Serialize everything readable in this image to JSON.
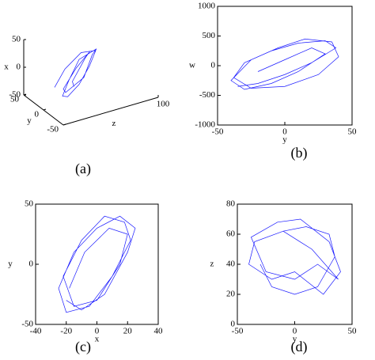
{
  "chart_data": [
    {
      "type": "line3d",
      "label": "(a)",
      "xlabel": "x",
      "ylabel": "y",
      "zlabel": "z",
      "color": "#1a1aff",
      "xlim": [
        -50,
        50
      ],
      "ylim": [
        -50,
        50
      ],
      "zlim": [
        0,
        100
      ],
      "xticks": [
        -50,
        0,
        50
      ],
      "yticks": [
        -50,
        0,
        50
      ],
      "zticks": [
        100
      ],
      "x": [
        -30,
        -10,
        15,
        30,
        20,
        0,
        -20,
        -35,
        -25,
        0,
        25,
        35,
        10,
        -15,
        -30,
        -10,
        20,
        30,
        5,
        -20
      ],
      "y": [
        20,
        30,
        25,
        0,
        -20,
        -30,
        -25,
        0,
        20,
        30,
        10,
        -15,
        -30,
        -20,
        10,
        25,
        15,
        -10,
        -25,
        -5
      ],
      "z": [
        20,
        35,
        50,
        55,
        40,
        25,
        15,
        20,
        35,
        50,
        60,
        45,
        30,
        15,
        25,
        45,
        55,
        40,
        20,
        30
      ]
    },
    {
      "type": "line",
      "label": "(b)",
      "xlabel": "y",
      "ylabel": "w",
      "color": "#1a1aff",
      "xlim": [
        -50,
        50
      ],
      "ylim": [
        -1000,
        1000
      ],
      "xticks": [
        -50,
        0,
        50
      ],
      "yticks": [
        -1000,
        -500,
        0,
        500,
        1000
      ],
      "x": [
        -35,
        -20,
        0,
        20,
        38,
        30,
        10,
        -10,
        -30,
        -38,
        -25,
        0,
        25,
        40,
        35,
        15,
        -5,
        -25,
        -40,
        -30,
        -10,
        10,
        30,
        20,
        0,
        -20
      ],
      "y": [
        -350,
        -300,
        -150,
        50,
        300,
        420,
        380,
        250,
        50,
        -200,
        -380,
        -350,
        -150,
        150,
        400,
        450,
        300,
        100,
        -250,
        -400,
        -300,
        -100,
        200,
        300,
        100,
        -100
      ]
    },
    {
      "type": "line",
      "label": "(c)",
      "xlabel": "x",
      "ylabel": "y",
      "color": "#1a1aff",
      "xlim": [
        -40,
        40
      ],
      "ylim": [
        -50,
        50
      ],
      "xticks": [
        -40,
        -20,
        0,
        20,
        40
      ],
      "yticks": [
        -50,
        0,
        50
      ],
      "x": [
        -20,
        -10,
        5,
        20,
        25,
        15,
        0,
        -15,
        -25,
        -20,
        -5,
        10,
        22,
        18,
        5,
        -10,
        -22,
        -15,
        0,
        15,
        20,
        8,
        -8,
        -18
      ],
      "y": [
        -30,
        -38,
        -25,
        10,
        30,
        40,
        30,
        10,
        -20,
        -40,
        -35,
        -10,
        20,
        35,
        40,
        20,
        -10,
        -35,
        -30,
        0,
        25,
        30,
        10,
        -20
      ]
    },
    {
      "type": "line",
      "label": "(d)",
      "xlabel": "y",
      "ylabel": "z",
      "color": "#1a1aff",
      "xlim": [
        -50,
        50
      ],
      "ylim": [
        0,
        80
      ],
      "xticks": [
        -50,
        0,
        50
      ],
      "yticks": [
        0,
        20,
        40,
        60,
        80
      ],
      "x": [
        -30,
        -20,
        0,
        20,
        35,
        30,
        10,
        -10,
        -35,
        -40,
        -20,
        0,
        25,
        40,
        30,
        5,
        -15,
        -38,
        -25,
        0,
        20,
        38,
        15,
        -10
      ],
      "y": [
        40,
        25,
        20,
        25,
        45,
        60,
        65,
        62,
        55,
        40,
        30,
        35,
        20,
        35,
        55,
        70,
        68,
        58,
        35,
        30,
        40,
        30,
        50,
        62
      ]
    }
  ]
}
